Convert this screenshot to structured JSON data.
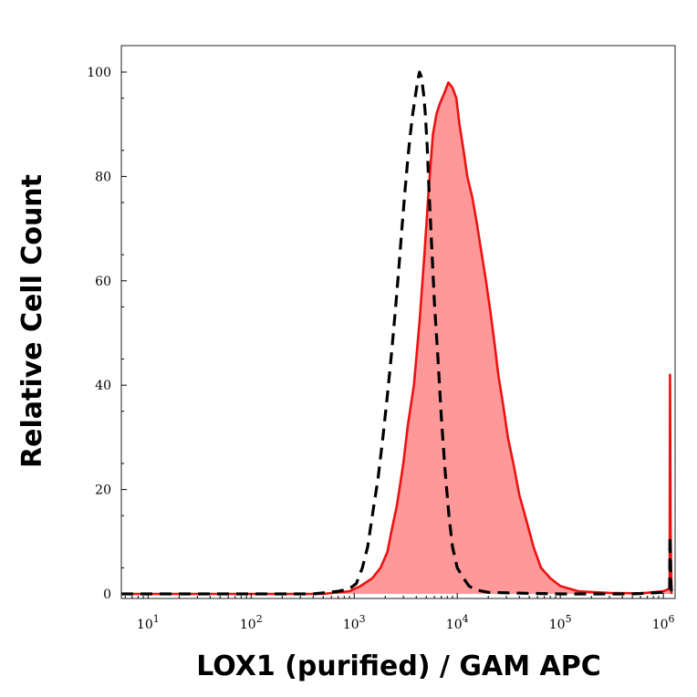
{
  "chart_data": {
    "type": "area",
    "title": "",
    "xlabel": "LOX1 (purified) / GAM APC",
    "ylabel": "Relative Cell Count",
    "x_scale": "log",
    "xlim": [
      5.5,
      1300000
    ],
    "ylim": [
      0,
      100
    ],
    "x_ticks": [
      {
        "value": 10,
        "base": "10",
        "exp": "1"
      },
      {
        "value": 100,
        "base": "10",
        "exp": "2"
      },
      {
        "value": 1000,
        "base": "10",
        "exp": "3"
      },
      {
        "value": 10000,
        "base": "10",
        "exp": "4"
      },
      {
        "value": 100000,
        "base": "10",
        "exp": "5"
      },
      {
        "value": 1000000,
        "base": "10",
        "exp": "6"
      }
    ],
    "y_ticks": [
      "0",
      "20",
      "40",
      "60",
      "80",
      "100"
    ],
    "grid": false,
    "legend": "none",
    "series": [
      {
        "style": "filled-solid",
        "stroke": "#ee1111",
        "fill": "#ff9999",
        "x": [
          5.5,
          100,
          500,
          900,
          1150,
          1500,
          1800,
          2100,
          2300,
          2600,
          3000,
          3300,
          3800,
          4300,
          4800,
          5300,
          5800,
          6300,
          6800,
          7500,
          8200,
          9000,
          9800,
          10500,
          11500,
          12500,
          14000,
          15500,
          17000,
          19000,
          21000,
          23000,
          25000,
          28000,
          31000,
          35000,
          40000,
          47000,
          55000,
          65000,
          80000,
          100000,
          150000,
          300000,
          600000,
          1000000,
          1150000,
          1160000,
          1180000,
          1200000
        ],
        "y": [
          0,
          0,
          0,
          0.5,
          1.5,
          3,
          5,
          8,
          12,
          17,
          25,
          32,
          40,
          52,
          65,
          78,
          88,
          92,
          94,
          96,
          98,
          97,
          95,
          90,
          85,
          80,
          76,
          71,
          66,
          60,
          54,
          48,
          42,
          36,
          30,
          25,
          19,
          14,
          9,
          5,
          3,
          1.5,
          0.5,
          0.2,
          0.1,
          0.5,
          1,
          42,
          10,
          0
        ]
      },
      {
        "style": "dashed",
        "stroke": "#000000",
        "x": [
          5.5,
          100,
          400,
          700,
          900,
          1050,
          1200,
          1350,
          1500,
          1700,
          1900,
          2100,
          2300,
          2500,
          2700,
          2900,
          3100,
          3300,
          3500,
          3700,
          3900,
          4100,
          4300,
          4500,
          4700,
          4900,
          5100,
          5300,
          5600,
          6000,
          6500,
          7000,
          7600,
          8300,
          9000,
          10000,
          11500,
          13000,
          15000,
          20000,
          50000,
          100000,
          500000,
          1000000,
          1150000,
          1160000,
          1180000,
          1200000
        ],
        "y": [
          0,
          0,
          0,
          0.5,
          1,
          2,
          5,
          9,
          15,
          22,
          30,
          38,
          46,
          54,
          62,
          70,
          77,
          83,
          88,
          92,
          95,
          98,
          100,
          99,
          96,
          92,
          86,
          78,
          68,
          56,
          45,
          34,
          24,
          15,
          9,
          5,
          3,
          1.5,
          0.8,
          0.3,
          0.1,
          0,
          0,
          0.3,
          1,
          11,
          3,
          0
        ]
      }
    ]
  }
}
